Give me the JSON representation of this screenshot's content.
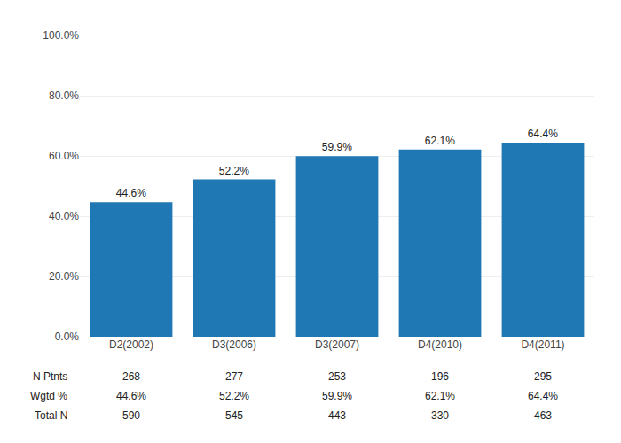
{
  "chart_data": {
    "type": "bar",
    "categories": [
      "D2(2002)",
      "D3(2006)",
      "D3(2007)",
      "D4(2010)",
      "D4(2011)"
    ],
    "values": [
      44.6,
      52.2,
      59.9,
      62.1,
      64.4
    ],
    "data_labels": true,
    "value_labels": [
      "44.6%",
      "52.2%",
      "59.9%",
      "62.1%",
      "64.4%"
    ],
    "ylim": [
      0,
      100
    ],
    "yticks": [
      {
        "value": 0,
        "label": "0.0%"
      },
      {
        "value": 20,
        "label": "20.0%"
      },
      {
        "value": 40,
        "label": "40.0%"
      },
      {
        "value": 60,
        "label": "60.0%"
      },
      {
        "value": 80,
        "label": "80.0%"
      },
      {
        "value": 100,
        "label": "100.0%"
      }
    ],
    "grid": true,
    "table": {
      "row_labels": [
        "N Ptnts",
        "Wgtd %",
        "Total N"
      ],
      "rows": [
        [
          "268",
          "277",
          "253",
          "196",
          "295"
        ],
        [
          "44.6%",
          "52.2%",
          "59.9%",
          "62.1%",
          "64.4%"
        ],
        [
          "590",
          "545",
          "443",
          "330",
          "463"
        ]
      ]
    }
  }
}
